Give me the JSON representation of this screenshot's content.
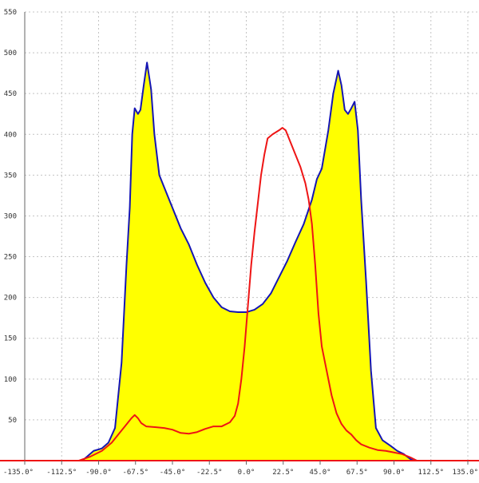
{
  "chart_data": {
    "type": "area",
    "title": "",
    "xlabel": "",
    "ylabel": "",
    "xlim": [
      -135,
      135
    ],
    "ylim": [
      0,
      550
    ],
    "grid": true,
    "x_ticks": [
      -135,
      -112.5,
      -90,
      -67.5,
      -45,
      -22.5,
      0,
      22.5,
      45,
      67.5,
      90,
      112.5,
      135
    ],
    "x_tick_labels": [
      "-135.0°",
      "-112.5°",
      "-90.0°",
      "-67.5°",
      "-45.0°",
      "-22.5°",
      "0.0°",
      "22.5°",
      "45.0°",
      "67.5°",
      "90.0°",
      "112.5°",
      "135.0°"
    ],
    "y_ticks": [
      50,
      100,
      150,
      200,
      250,
      300,
      350,
      400,
      450,
      500,
      550
    ],
    "y_tick_labels": [
      "50",
      "100",
      "150",
      "200",
      "250",
      "300",
      "350",
      "400",
      "450",
      "500",
      "550"
    ],
    "series": [
      {
        "type": "area",
        "color": "#1515b4",
        "fill": "#ffff00",
        "points": [
          [
            -100,
            0
          ],
          [
            -97,
            5
          ],
          [
            -93,
            12
          ],
          [
            -88,
            15
          ],
          [
            -84,
            22
          ],
          [
            -80,
            40
          ],
          [
            -76,
            120
          ],
          [
            -73,
            240
          ],
          [
            -71,
            310
          ],
          [
            -69.5,
            400
          ],
          [
            -68,
            432
          ],
          [
            -66,
            425
          ],
          [
            -64.5,
            430
          ],
          [
            -62.5,
            460
          ],
          [
            -60.5,
            488
          ],
          [
            -58,
            455
          ],
          [
            -56,
            400
          ],
          [
            -53,
            350
          ],
          [
            -50,
            335
          ],
          [
            -45,
            310
          ],
          [
            -40,
            285
          ],
          [
            -35,
            265
          ],
          [
            -30,
            240
          ],
          [
            -25,
            218
          ],
          [
            -20,
            200
          ],
          [
            -15,
            188
          ],
          [
            -10,
            183
          ],
          [
            -5,
            182
          ],
          [
            0,
            182
          ],
          [
            5,
            185
          ],
          [
            10,
            192
          ],
          [
            15,
            205
          ],
          [
            20,
            225
          ],
          [
            25,
            245
          ],
          [
            30,
            268
          ],
          [
            35,
            290
          ],
          [
            40,
            320
          ],
          [
            43,
            345
          ],
          [
            46,
            358
          ],
          [
            50,
            405
          ],
          [
            53,
            450
          ],
          [
            56,
            478
          ],
          [
            58,
            460
          ],
          [
            60,
            430
          ],
          [
            62,
            425
          ],
          [
            64,
            432
          ],
          [
            66,
            440
          ],
          [
            68,
            405
          ],
          [
            70,
            320
          ],
          [
            73,
            220
          ],
          [
            76,
            110
          ],
          [
            79,
            40
          ],
          [
            83,
            25
          ],
          [
            88,
            18
          ],
          [
            92,
            12
          ],
          [
            96,
            8
          ],
          [
            100,
            2
          ],
          [
            102,
            0
          ]
        ]
      },
      {
        "type": "line",
        "color": "#ee1515",
        "points": [
          [
            -102,
            0
          ],
          [
            -95,
            5
          ],
          [
            -88,
            12
          ],
          [
            -82,
            22
          ],
          [
            -78,
            32
          ],
          [
            -74,
            42
          ],
          [
            -70,
            52
          ],
          [
            -68,
            56
          ],
          [
            -66,
            52
          ],
          [
            -64,
            46
          ],
          [
            -61,
            42
          ],
          [
            -55,
            41
          ],
          [
            -50,
            40
          ],
          [
            -45,
            38
          ],
          [
            -40,
            34
          ],
          [
            -35,
            33
          ],
          [
            -30,
            35
          ],
          [
            -25,
            39
          ],
          [
            -20,
            42
          ],
          [
            -15,
            42
          ],
          [
            -10,
            47
          ],
          [
            -7,
            55
          ],
          [
            -5,
            70
          ],
          [
            -3,
            100
          ],
          [
            -1,
            140
          ],
          [
            1,
            190
          ],
          [
            3,
            240
          ],
          [
            5,
            280
          ],
          [
            7,
            315
          ],
          [
            9,
            350
          ],
          [
            11,
            375
          ],
          [
            13,
            395
          ],
          [
            16,
            400
          ],
          [
            20,
            405
          ],
          [
            22,
            408
          ],
          [
            24,
            405
          ],
          [
            27,
            390
          ],
          [
            30,
            375
          ],
          [
            33,
            360
          ],
          [
            36,
            340
          ],
          [
            38,
            320
          ],
          [
            40,
            290
          ],
          [
            42,
            240
          ],
          [
            44,
            180
          ],
          [
            46,
            140
          ],
          [
            49,
            110
          ],
          [
            52,
            80
          ],
          [
            55,
            58
          ],
          [
            58,
            45
          ],
          [
            61,
            37
          ],
          [
            64,
            32
          ],
          [
            67,
            25
          ],
          [
            70,
            20
          ],
          [
            75,
            16
          ],
          [
            80,
            13
          ],
          [
            85,
            12
          ],
          [
            90,
            10
          ],
          [
            95,
            8
          ],
          [
            100,
            4
          ],
          [
            104,
            0
          ]
        ]
      }
    ]
  }
}
